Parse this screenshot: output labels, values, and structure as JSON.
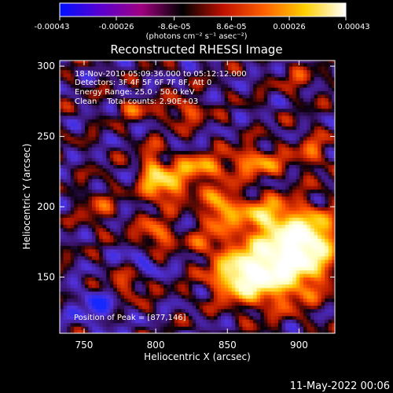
{
  "colorbar": {
    "tick_labels": [
      "-0.00043",
      "-0.00026",
      "-8.6e-05",
      "8.6e-05",
      "0.00026",
      "0.00043"
    ],
    "tick_values": [
      -0.00043,
      -0.00026,
      -8.6e-05,
      8.6e-05,
      0.00026,
      0.00043
    ],
    "range": [
      -0.00043,
      0.00043
    ],
    "units": "(photons cm⁻² s⁻¹ asec⁻²)",
    "colors": [
      "#0010ff",
      "#5a00d0",
      "#a00080",
      "#000000",
      "#c01000",
      "#ff6000",
      "#ffd000",
      "#ffffff"
    ]
  },
  "chart_data": {
    "type": "heatmap",
    "title": "Reconstructed RHESSI Image",
    "xlabel": "Heliocentric X (arcsec)",
    "ylabel": "Heliocentric Y (arcsec)",
    "xlim": [
      733,
      925
    ],
    "ylim": [
      110,
      304
    ],
    "xticks": [
      750,
      800,
      850,
      900
    ],
    "yticks": [
      150,
      200,
      250,
      300
    ],
    "xtick_labels": [
      "750",
      "800",
      "850",
      "900"
    ],
    "ytick_labels": [
      "150",
      "200",
      "250",
      "300"
    ],
    "annotations": [
      "18-Nov-2010 05:09:36.000 to 05:12:12.000",
      "Detectors: 3F 4F 5F 6F 7F 8F, Att 0",
      "Energy Range: 25.0 - 50.0 keV",
      "Clean    Total counts: 2.90E+03"
    ],
    "peak_text": "Position of Peak = [877,146]",
    "peak": [
      877,
      146
    ],
    "blobs": [
      {
        "x": 885,
        "y": 160,
        "amp": 1.0,
        "sx": 22,
        "sy": 18
      },
      {
        "x": 905,
        "y": 178,
        "amp": 0.8,
        "sx": 14,
        "sy": 14
      },
      {
        "x": 860,
        "y": 150,
        "amp": 0.7,
        "sx": 14,
        "sy": 10
      },
      {
        "x": 875,
        "y": 195,
        "amp": 0.55,
        "sx": 12,
        "sy": 8
      },
      {
        "x": 845,
        "y": 200,
        "amp": 0.6,
        "sx": 8,
        "sy": 10
      },
      {
        "x": 810,
        "y": 215,
        "amp": 0.55,
        "sx": 10,
        "sy": 8
      },
      {
        "x": 798,
        "y": 225,
        "amp": 0.5,
        "sx": 6,
        "sy": 12
      },
      {
        "x": 830,
        "y": 228,
        "amp": 0.55,
        "sx": 12,
        "sy": 6
      },
      {
        "x": 870,
        "y": 232,
        "amp": 0.5,
        "sx": 14,
        "sy": 7
      },
      {
        "x": 800,
        "y": 180,
        "amp": 0.45,
        "sx": 9,
        "sy": 8
      },
      {
        "x": 780,
        "y": 145,
        "amp": 0.35,
        "sx": 10,
        "sy": 8
      },
      {
        "x": 820,
        "y": 268,
        "amp": 0.35,
        "sx": 10,
        "sy": 6
      },
      {
        "x": 785,
        "y": 270,
        "amp": 0.3,
        "sx": 8,
        "sy": 5
      },
      {
        "x": 910,
        "y": 240,
        "amp": 0.3,
        "sx": 8,
        "sy": 10
      },
      {
        "x": 900,
        "y": 290,
        "amp": 0.25,
        "sx": 8,
        "sy": 6
      },
      {
        "x": 760,
        "y": 200,
        "amp": 0.25,
        "sx": 8,
        "sy": 10
      },
      {
        "x": 835,
        "y": 175,
        "amp": 0.3,
        "sx": 8,
        "sy": 6
      },
      {
        "x": 760,
        "y": 130,
        "amp": -0.3,
        "sx": 12,
        "sy": 10
      },
      {
        "x": 790,
        "y": 160,
        "amp": -0.25,
        "sx": 10,
        "sy": 8
      }
    ]
  },
  "timestamp": "11-May-2022 00:06"
}
